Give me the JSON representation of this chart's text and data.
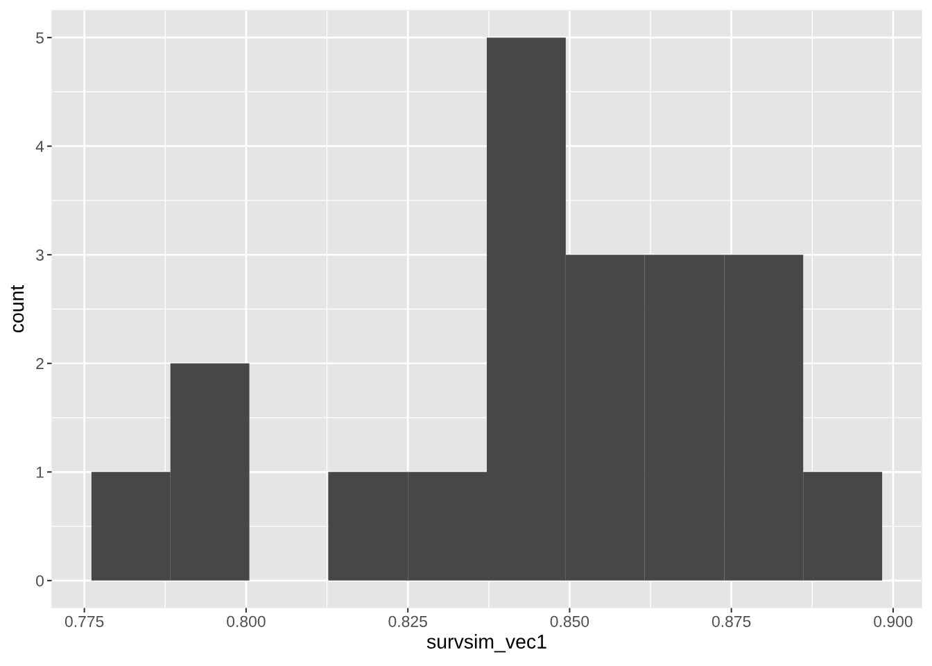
{
  "chart_data": {
    "type": "histogram",
    "xlabel": "survsim_vec1",
    "ylabel": "count",
    "bins": [
      0.7761,
      0.7883,
      0.8005,
      0.8127,
      0.825,
      0.8372,
      0.8494,
      0.8616,
      0.8739,
      0.8861,
      0.8983
    ],
    "values": [
      1,
      2,
      0,
      1,
      1,
      5,
      3,
      3,
      3,
      1
    ],
    "color": "#474747",
    "xlim": [
      0.77,
      0.9044
    ],
    "ylim": [
      -0.25,
      5.25
    ],
    "xticks": [
      0.775,
      {
        "value": 0.8,
        "label": "0.800"
      },
      0.825,
      {
        "value": 0.85,
        "label": "0.850"
      },
      0.875,
      {
        "value": 0.9,
        "label": "0.900"
      }
    ],
    "yticks": [
      0,
      1,
      2,
      3,
      4,
      5
    ],
    "grid": true
  }
}
